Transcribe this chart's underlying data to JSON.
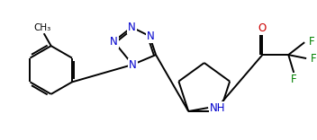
{
  "bg_color": "#ffffff",
  "bond_color": "#000000",
  "N_color": "#0000cd",
  "O_color": "#cc0000",
  "F_color": "#008000",
  "line_width": 1.4,
  "font_size": 8.5,
  "figsize": [
    3.52,
    1.56
  ],
  "dpi": 100,
  "xlim": [
    0,
    352
  ],
  "ylim": [
    0,
    156
  ]
}
